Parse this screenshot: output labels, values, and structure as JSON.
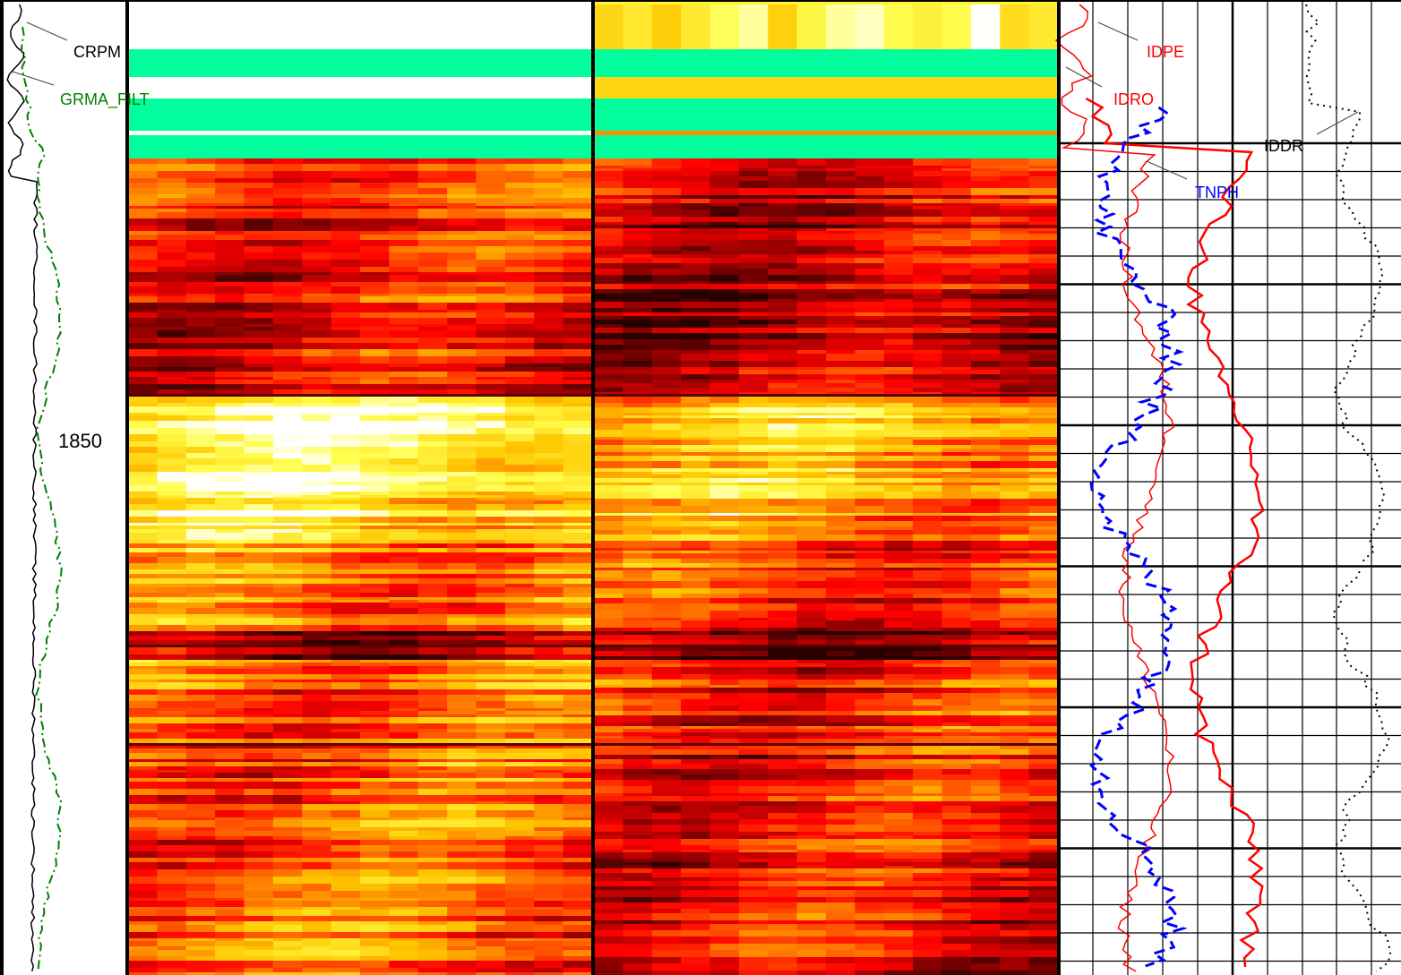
{
  "chart_data": {
    "type": "well-log",
    "depth_label": "1850",
    "tracks": [
      {
        "id": "track1",
        "curves": [
          {
            "name": "CRPM",
            "color": "#000000",
            "style": "solid"
          },
          {
            "name": "GRMA_FILT",
            "color": "#008000",
            "style": "dashdot"
          }
        ]
      },
      {
        "id": "image1",
        "kind": "image",
        "colormap": "heat"
      },
      {
        "id": "image2",
        "kind": "image",
        "colormap": "heat"
      },
      {
        "id": "track4",
        "curves": [
          {
            "name": "IDPE",
            "color": "#ff0000",
            "style": "solid"
          },
          {
            "name": "IDRO",
            "color": "#ff0000",
            "style": "solid"
          },
          {
            "name": "TNPH",
            "color": "#0000ff",
            "style": "dashed"
          },
          {
            "name": "IDDR",
            "color": "#000000",
            "style": "dotted"
          }
        ]
      }
    ],
    "colors": {
      "heat_dark": "#1a0000",
      "heat_red": "#ff2000",
      "heat_orange": "#ff8000",
      "heat_yellow": "#ffe040",
      "heat_white": "#ffffff",
      "missing_band": "#00ff9c",
      "grid": "#000000"
    }
  }
}
